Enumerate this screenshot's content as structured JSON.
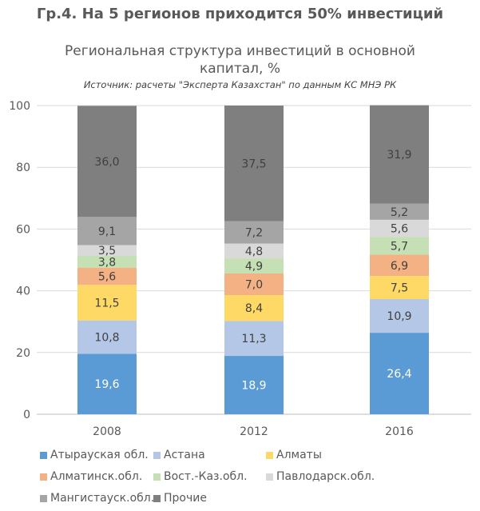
{
  "chart_data": {
    "type": "bar",
    "stacked": true,
    "title": "Гр.4. На 5 регионов приходится 50% инвестиций",
    "subtitle": "Региональная структура инвестиций в основной капитал, %",
    "source": "Источник: расчеты \"Эксперта Казахстан\" по данным КС МНЭ РК",
    "categories": [
      "2008",
      "2012",
      "2016"
    ],
    "ylim": [
      0,
      100
    ],
    "yticks": [
      0,
      20,
      40,
      60,
      80,
      100
    ],
    "grid": true,
    "legend_position": "bottom",
    "series": [
      {
        "name": "Атырауская обл.",
        "color": "#5B9BD5",
        "values": [
          19.6,
          18.9,
          26.4
        ],
        "labels": [
          "19,6",
          "18,9",
          "26,4"
        ]
      },
      {
        "name": "Астана",
        "color": "#B4C7E7",
        "values": [
          10.8,
          11.3,
          10.9
        ],
        "labels": [
          "10,8",
          "11,3",
          "10,9"
        ]
      },
      {
        "name": "Алматы",
        "color": "#FFD966",
        "values": [
          11.5,
          8.4,
          7.5
        ],
        "labels": [
          "11,5",
          "8,4",
          "7,5"
        ]
      },
      {
        "name": "Алматинск.обл.",
        "color": "#F4B183",
        "values": [
          5.6,
          7.0,
          6.9
        ],
        "labels": [
          "5,6",
          "7,0",
          "6,9"
        ]
      },
      {
        "name": "Вост.-Каз.обл.",
        "color": "#C5E0B4",
        "values": [
          3.8,
          4.9,
          5.7
        ],
        "labels": [
          "3,8",
          "4,9",
          "5,7"
        ]
      },
      {
        "name": "Павлодарск.обл.",
        "color": "#D9D9D9",
        "values": [
          3.5,
          4.8,
          5.6
        ],
        "labels": [
          "3,5",
          "4,8",
          "5,6"
        ]
      },
      {
        "name": "Мангистауск.обл.",
        "color": "#A5A5A5",
        "values": [
          9.1,
          7.2,
          5.2
        ],
        "labels": [
          "9,1",
          "7,2",
          "5,2"
        ]
      },
      {
        "name": "Прочие",
        "color": "#7F7F7F",
        "values": [
          36.0,
          37.5,
          31.9
        ],
        "labels": [
          "36,0",
          "37,5",
          "31,9"
        ]
      }
    ]
  }
}
